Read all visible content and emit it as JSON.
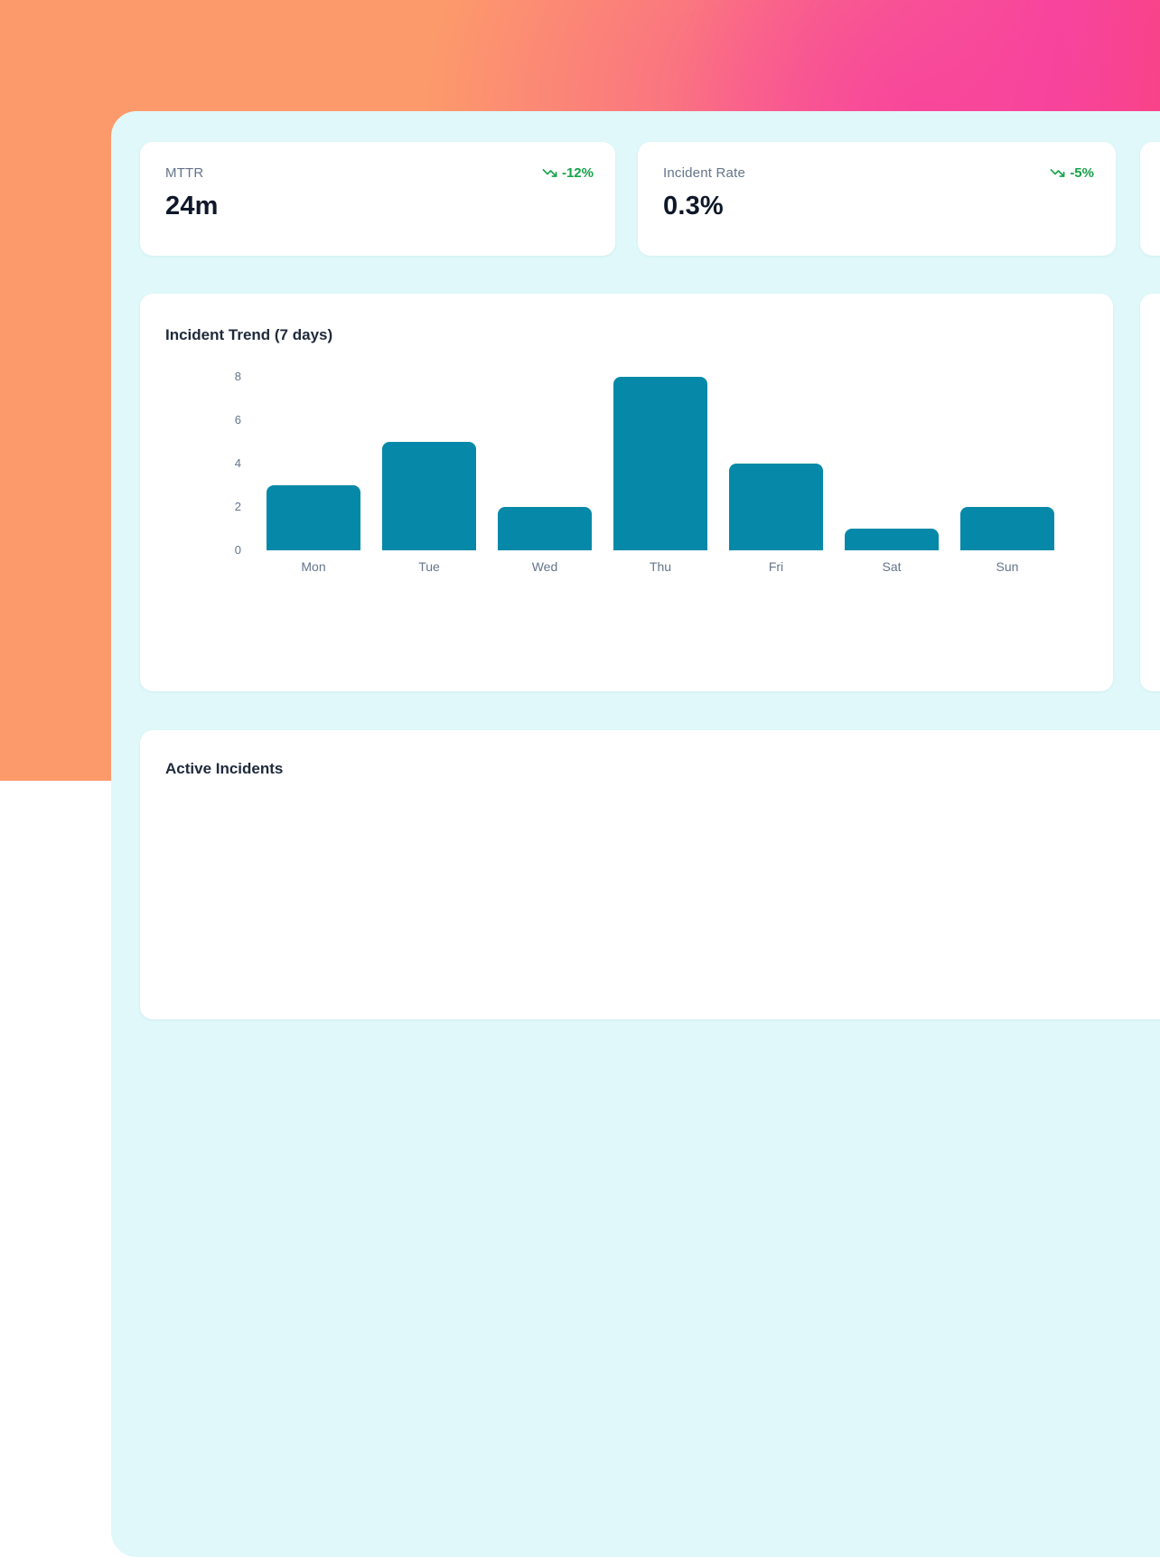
{
  "colors": {
    "bg_orange": "#fc9a6b",
    "bg_pink": "#f8459d",
    "bg_red": "#fa4253",
    "panel_bg": "#e0f8fa",
    "card_bg": "#ffffff",
    "label_gray": "#64748b",
    "value_dark": "#0f172a",
    "trend_green": "#16a34a",
    "bar_teal": "#0689a8"
  },
  "metrics": [
    {
      "label": "MTTR",
      "value": "24m",
      "trend": "-12%",
      "trend_direction": "down",
      "trend_icon": "trending-down-icon"
    },
    {
      "label": "Incident Rate",
      "value": "0.3%",
      "trend": "-5%",
      "trend_direction": "down",
      "trend_icon": "trending-down-icon"
    }
  ],
  "chart": {
    "title": "Incident Trend (7 days)",
    "chart_data": {
      "type": "bar",
      "categories": [
        "Mon",
        "Tue",
        "Wed",
        "Thu",
        "Fri",
        "Sat",
        "Sun"
      ],
      "values": [
        3,
        5,
        2,
        8,
        4,
        1,
        2
      ],
      "title": "Incident Trend (7 days)",
      "xlabel": "",
      "ylabel": "",
      "ylim": [
        0,
        8
      ],
      "yticks": [
        0,
        2,
        4,
        6,
        8
      ],
      "bar_color": "#0689a8",
      "grid": false,
      "legend": false
    }
  },
  "incidents": {
    "title": "Active Incidents"
  }
}
